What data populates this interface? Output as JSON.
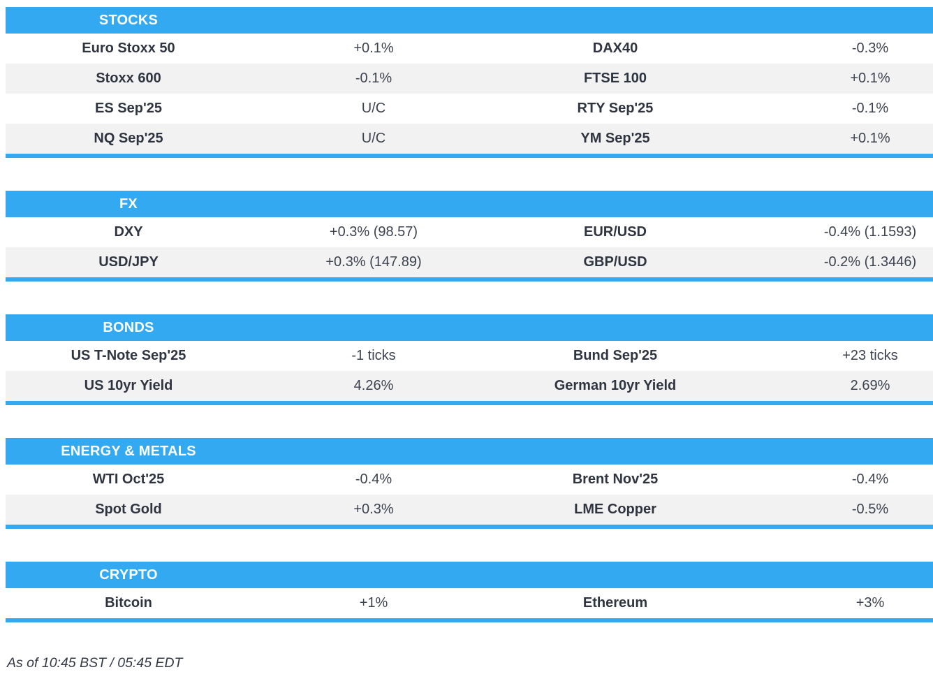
{
  "colors": {
    "accent": "#32a9f0",
    "row_alt": "#f2f2f2",
    "label_text": "#2e3540",
    "value_text": "#3c4350",
    "header_text": "#ffffff"
  },
  "footer": {
    "as_of": "As of 10:45 BST / 05:45 EDT"
  },
  "chart_data": [
    {
      "type": "table",
      "title": "STOCKS",
      "rows": [
        [
          "Euro Stoxx 50",
          "+0.1%",
          "DAX40",
          "-0.3%"
        ],
        [
          "Stoxx 600",
          "-0.1%",
          "FTSE 100",
          "+0.1%"
        ],
        [
          "ES Sep'25",
          "U/C",
          "RTY Sep'25",
          "-0.1%"
        ],
        [
          "NQ Sep'25",
          "U/C",
          "YM Sep'25",
          "+0.1%"
        ]
      ]
    },
    {
      "type": "table",
      "title": "FX",
      "rows": [
        [
          "DXY",
          "+0.3% (98.57)",
          "EUR/USD",
          "-0.4% (1.1593)"
        ],
        [
          "USD/JPY",
          "+0.3% (147.89)",
          "GBP/USD",
          "-0.2% (1.3446)"
        ]
      ]
    },
    {
      "type": "table",
      "title": "BONDS",
      "rows": [
        [
          "US T-Note Sep'25",
          "-1 ticks",
          "Bund Sep'25",
          "+23 ticks"
        ],
        [
          "US 10yr Yield",
          "4.26%",
          "German 10yr Yield",
          "2.69%"
        ]
      ]
    },
    {
      "type": "table",
      "title": "ENERGY & METALS",
      "rows": [
        [
          "WTI Oct'25",
          "-0.4%",
          "Brent Nov'25",
          "-0.4%"
        ],
        [
          "Spot Gold",
          "+0.3%",
          "LME Copper",
          "-0.5%"
        ]
      ]
    },
    {
      "type": "table",
      "title": "CRYPTO",
      "rows": [
        [
          "Bitcoin",
          "+1%",
          "Ethereum",
          "+3%"
        ]
      ]
    }
  ]
}
